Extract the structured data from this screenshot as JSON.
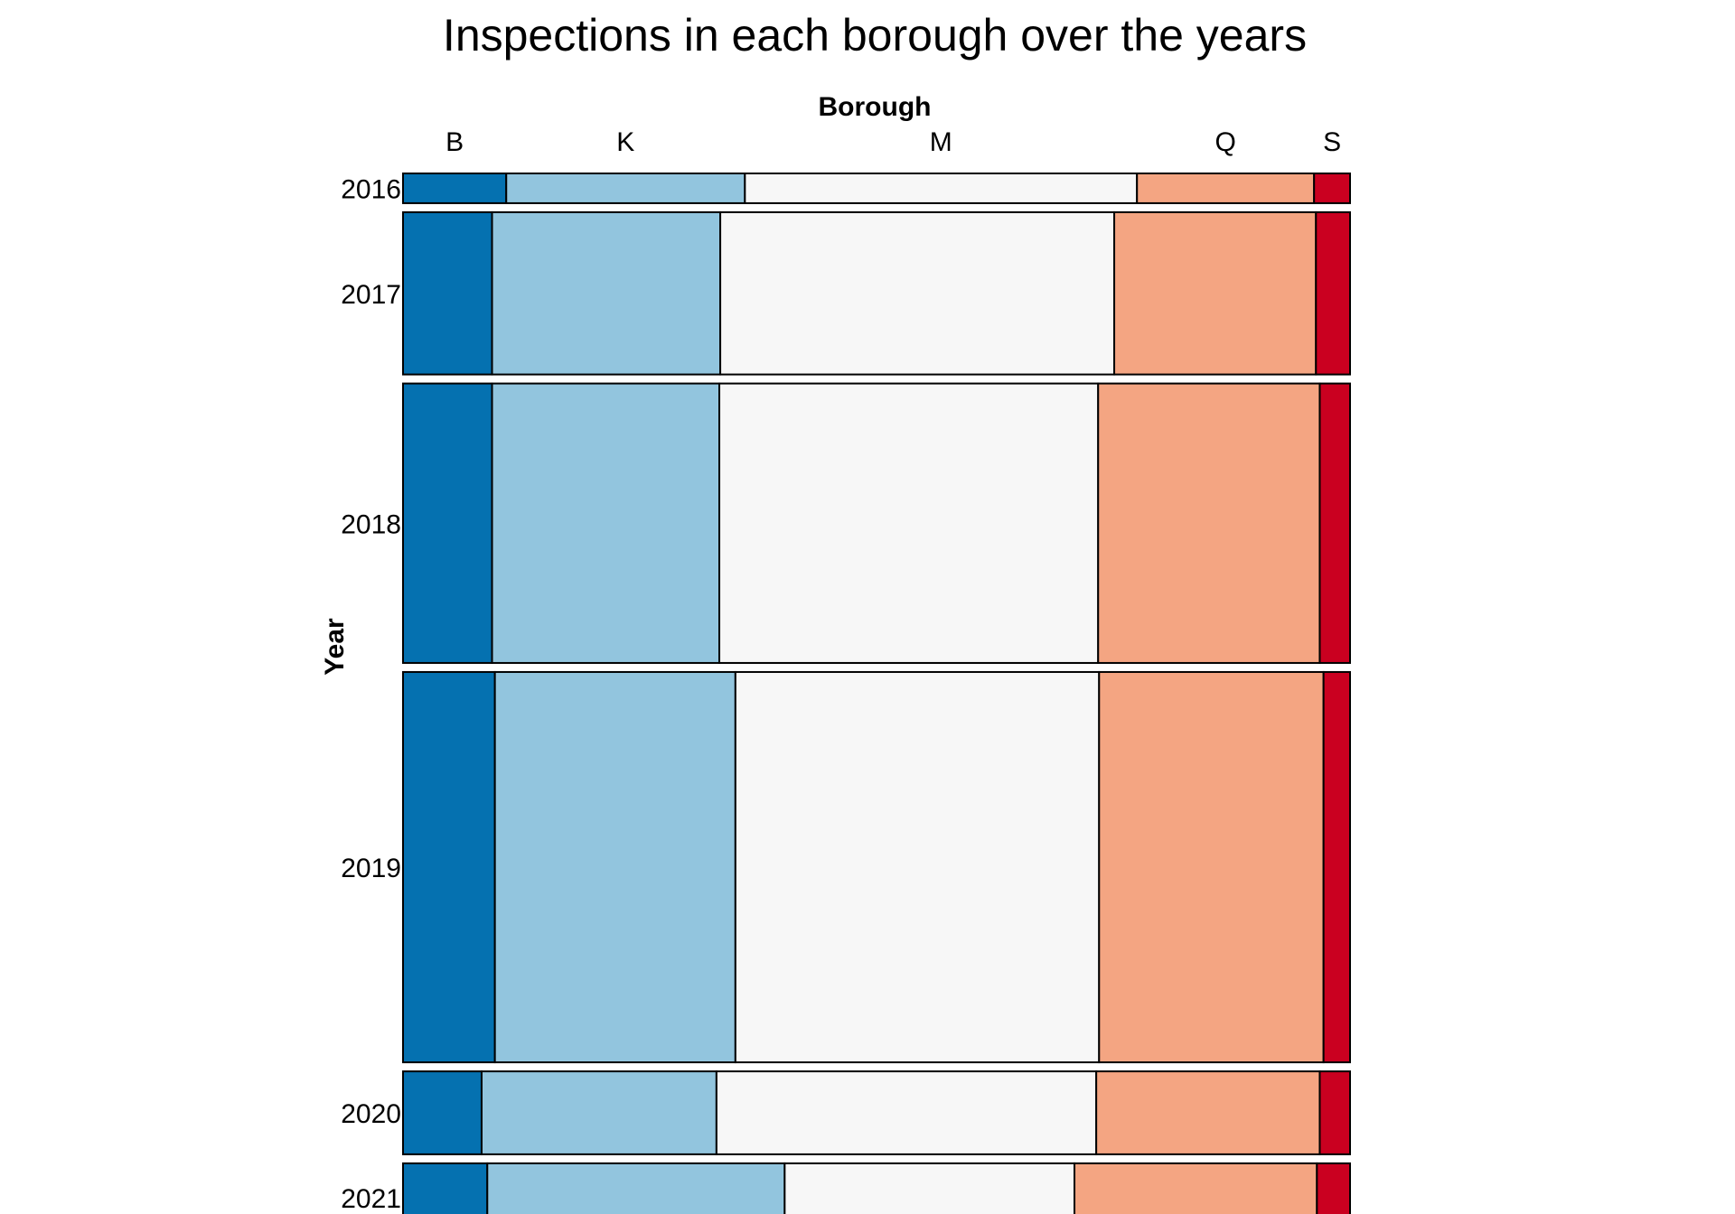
{
  "chart_data": {
    "type": "mosaic",
    "title": "Inspections in each borough over the years",
    "xlabel": "Borough",
    "ylabel": "Year",
    "categories": [
      "B",
      "K",
      "M",
      "Q",
      "S"
    ],
    "colors": [
      "#0571b0",
      "#92c5de",
      "#f7f7f7",
      "#f4a582",
      "#ca0020"
    ],
    "years": [
      {
        "label": "2016",
        "share": 0.033,
        "proportions": [
          0.109,
          0.252,
          0.414,
          0.187,
          0.038
        ]
      },
      {
        "label": "2017",
        "share": 0.18,
        "proportions": [
          0.094,
          0.241,
          0.416,
          0.213,
          0.036
        ]
      },
      {
        "label": "2018",
        "share": 0.31,
        "proportions": [
          0.094,
          0.24,
          0.4,
          0.234,
          0.032
        ]
      },
      {
        "label": "2019",
        "share": 0.433,
        "proportions": [
          0.097,
          0.254,
          0.384,
          0.237,
          0.028
        ]
      },
      {
        "label": "2020",
        "share": 0.092,
        "proportions": [
          0.083,
          0.248,
          0.401,
          0.236,
          0.032
        ]
      },
      {
        "label": "2021",
        "share": 0.076,
        "proportions": [
          0.089,
          0.314,
          0.306,
          0.256,
          0.035
        ]
      }
    ]
  }
}
